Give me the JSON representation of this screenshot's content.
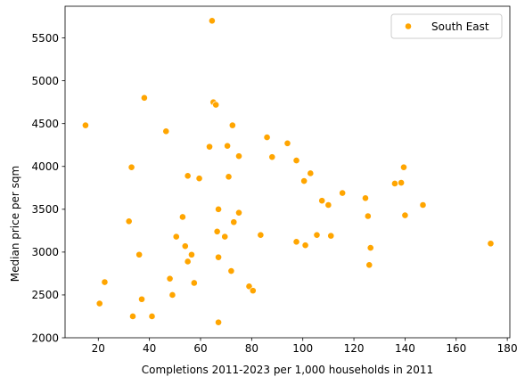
{
  "chart_data": {
    "type": "scatter",
    "xlabel": "Completions 2011-2023 per 1,000 households in 2011",
    "ylabel": "Median price per sqm",
    "xlim": [
      7,
      181
    ],
    "ylim": [
      2000,
      5870
    ],
    "xticks": [
      20,
      40,
      60,
      80,
      100,
      120,
      140,
      160,
      180
    ],
    "yticks": [
      2000,
      2500,
      3000,
      3500,
      4000,
      4500,
      5000,
      5500
    ],
    "grid": false,
    "legend_position": "top-right",
    "series": [
      {
        "name": "South East",
        "color": "#ffa500",
        "points": [
          [
            15,
            4480
          ],
          [
            20.5,
            2400
          ],
          [
            22.5,
            2650
          ],
          [
            32,
            3360
          ],
          [
            33,
            3990
          ],
          [
            33.5,
            2250
          ],
          [
            36,
            2970
          ],
          [
            37,
            2450
          ],
          [
            38,
            4800
          ],
          [
            41,
            2250
          ],
          [
            46.5,
            4410
          ],
          [
            48,
            2690
          ],
          [
            49,
            2500
          ],
          [
            50.5,
            3180
          ],
          [
            53,
            3410
          ],
          [
            54,
            3070
          ],
          [
            55,
            3890
          ],
          [
            55,
            2890
          ],
          [
            56.5,
            2970
          ],
          [
            57.5,
            2640
          ],
          [
            59.5,
            3860
          ],
          [
            63.5,
            4230
          ],
          [
            64.5,
            5700
          ],
          [
            65,
            4750
          ],
          [
            66,
            4720
          ],
          [
            66.5,
            3240
          ],
          [
            67,
            3500
          ],
          [
            67,
            2940
          ],
          [
            67,
            2180
          ],
          [
            69.5,
            3180
          ],
          [
            70.5,
            4240
          ],
          [
            71,
            3880
          ],
          [
            72,
            2780
          ],
          [
            72.5,
            4480
          ],
          [
            73,
            3350
          ],
          [
            75,
            4120
          ],
          [
            75,
            3460
          ],
          [
            79,
            2600
          ],
          [
            80.5,
            2550
          ],
          [
            83.5,
            3200
          ],
          [
            86,
            4340
          ],
          [
            88,
            4110
          ],
          [
            94,
            4270
          ],
          [
            97.5,
            4070
          ],
          [
            97.5,
            3120
          ],
          [
            100.5,
            3830
          ],
          [
            101,
            3080
          ],
          [
            103,
            3920
          ],
          [
            105.5,
            3200
          ],
          [
            107.5,
            3600
          ],
          [
            110,
            3550
          ],
          [
            111,
            3190
          ],
          [
            115.5,
            3690
          ],
          [
            124.5,
            3630
          ],
          [
            125.5,
            3420
          ],
          [
            126,
            2850
          ],
          [
            126.5,
            3050
          ],
          [
            136,
            3800
          ],
          [
            138.5,
            3810
          ],
          [
            139.5,
            3990
          ],
          [
            140,
            3430
          ],
          [
            147,
            3550
          ],
          [
            173.5,
            3100
          ]
        ]
      }
    ]
  }
}
